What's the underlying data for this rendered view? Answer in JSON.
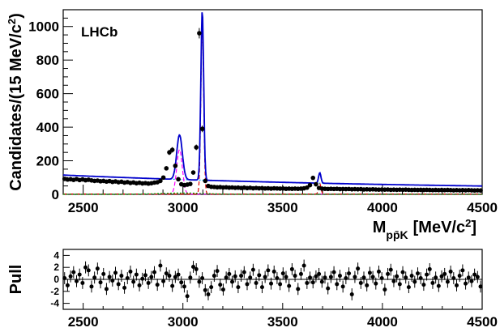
{
  "chart_data": [
    {
      "type": "scatter",
      "name_text": "LHCb",
      "ylabel_main": "Candidates/(15 MeV/c",
      "ylabel_sup": "2",
      "ylabel_close": ")",
      "xlabel_main": "M",
      "xlabel_sub": "pp̄K",
      "xlabel_unit": "[MeV/c",
      "xlabel_sup": "2",
      "xlabel_close": "]",
      "xlim": [
        2400,
        4500
      ],
      "ylim": [
        0,
        1100
      ],
      "xticks": [
        "2500",
        "3000",
        "3500",
        "4000",
        "4500"
      ],
      "yticks": [
        "0",
        "200",
        "400",
        "600",
        "800",
        "1000"
      ],
      "data_points": {
        "x": [
          2407,
          2422,
          2437,
          2452,
          2467,
          2482,
          2497,
          2512,
          2527,
          2542,
          2557,
          2572,
          2587,
          2602,
          2617,
          2632,
          2647,
          2662,
          2677,
          2692,
          2707,
          2722,
          2737,
          2752,
          2767,
          2782,
          2797,
          2812,
          2827,
          2842,
          2857,
          2872,
          2887,
          2902,
          2917,
          2932,
          2947,
          2962,
          2977,
          2992,
          3007,
          3022,
          3037,
          3052,
          3067,
          3082,
          3097,
          3112,
          3127,
          3142,
          3157,
          3172,
          3187,
          3202,
          3217,
          3232,
          3247,
          3262,
          3277,
          3292,
          3307,
          3322,
          3337,
          3352,
          3367,
          3382,
          3397,
          3412,
          3427,
          3442,
          3457,
          3472,
          3487,
          3502,
          3517,
          3532,
          3547,
          3562,
          3577,
          3592,
          3607,
          3622,
          3637,
          3652,
          3667,
          3682,
          3697,
          3712,
          3727,
          3742,
          3757,
          3772,
          3787,
          3802,
          3817,
          3832,
          3847,
          3862,
          3877,
          3892,
          3907,
          3922,
          3937,
          3952,
          3967,
          3982,
          3997,
          4012,
          4027,
          4042,
          4057,
          4072,
          4087,
          4102,
          4117,
          4132,
          4147,
          4162,
          4177,
          4192,
          4207,
          4222,
          4237,
          4252,
          4267,
          4282,
          4297,
          4312,
          4327,
          4342,
          4357,
          4372,
          4387,
          4402,
          4417,
          4432,
          4447,
          4462,
          4477,
          4492
        ],
        "y": [
          92,
          88,
          90,
          86,
          91,
          85,
          89,
          84,
          87,
          83,
          80,
          82,
          78,
          80,
          76,
          79,
          74,
          77,
          72,
          75,
          70,
          73,
          68,
          71,
          66,
          69,
          65,
          67,
          64,
          66,
          70,
          72,
          80,
          100,
          155,
          250,
          265,
          170,
          90,
          60,
          55,
          58,
          62,
          130,
          280,
          960,
          390,
          80,
          50,
          45,
          44,
          42,
          43,
          41,
          42,
          40,
          41,
          39,
          40,
          38,
          40,
          37,
          39,
          36,
          38,
          36,
          37,
          35,
          36,
          34,
          36,
          35,
          34,
          35,
          33,
          34,
          33,
          34,
          33,
          34,
          36,
          40,
          55,
          98,
          60,
          38,
          34,
          33,
          32,
          33,
          32,
          33,
          31,
          32,
          31,
          32,
          30,
          31,
          30,
          31,
          29,
          30,
          29,
          30,
          29,
          28,
          29,
          28,
          29,
          27,
          28,
          27,
          28,
          27,
          28,
          27,
          26,
          27,
          26,
          27,
          26,
          27,
          26,
          25,
          26,
          25,
          26,
          25,
          26,
          25,
          24,
          25,
          24,
          25,
          24,
          25,
          24,
          23,
          24,
          23
        ]
      },
      "fit_series": [
        {
          "color": "#0000cc",
          "style": "solid"
        },
        {
          "color": "#dd0000",
          "style": "dashed"
        },
        {
          "color": "#00aaff",
          "style": "dotted"
        },
        {
          "color": "#ff00ff",
          "style": "dashed"
        },
        {
          "color": "#00aa00",
          "style": "dotted"
        }
      ]
    },
    {
      "type": "scatter",
      "ylabel": "Pull",
      "xlim": [
        2400,
        4500
      ],
      "ylim": [
        -5,
        5
      ],
      "xticks": [
        "2500",
        "3000",
        "3500",
        "4000",
        "4500"
      ],
      "yticks": [
        "-4",
        "-2",
        "0",
        "2",
        "4"
      ],
      "pulls": [
        0.2,
        -1.0,
        0.5,
        1.2,
        -0.3,
        0.8,
        -0.6,
        2.0,
        1.5,
        -1.2,
        0.3,
        1.8,
        -0.5,
        0.9,
        -1.6,
        0.4,
        -0.2,
        1.1,
        -0.8,
        0.6,
        -1.4,
        0.2,
        1.3,
        -0.4,
        0.8,
        -1.0,
        0.1,
        0.7,
        -0.6,
        0.4,
        1.2,
        -0.9,
        2.3,
        -0.3,
        1.0,
        0.6,
        -1.1,
        0.4,
        0.8,
        -0.5,
        -1.2,
        -2.8,
        0.3,
        2.1,
        1.7,
        -0.4,
        0.2,
        -1.8,
        -2.5,
        -1.3,
        0.6,
        1.4,
        -0.9,
        -1.7,
        0.3,
        0.9,
        -0.4,
        0.5,
        -1.3,
        0.6,
        1.2,
        -0.8,
        0.3,
        1.6,
        -0.6,
        0.7,
        -1.3,
        0.4,
        1.5,
        -0.7,
        1.3,
        0.2,
        -0.8,
        1.0,
        0.4,
        -1.1,
        1.7,
        0.6,
        -1.6,
        0.9,
        2.3,
        -0.6,
        0.3,
        -0.5,
        0.5,
        0.9,
        -0.4,
        0.3,
        -1.5,
        0.4,
        1.2,
        -0.8,
        0.6,
        -1.2,
        0.2,
        1.0,
        -2.5,
        0.4,
        1.8,
        -0.6,
        0.3,
        -1.0,
        1.1,
        0.4,
        -0.7,
        1.3,
        0.2,
        -1.7,
        0.9,
        1.6,
        -0.3,
        0.5,
        -0.8,
        1.2,
        0.3,
        -1.3,
        0.6,
        -0.4,
        1.0,
        0.2,
        -0.9,
        0.8,
        1.7,
        -0.6,
        0.3,
        -1.1,
        0.5,
        0.9,
        -0.4,
        1.3,
        0.2,
        -1.0,
        0.6,
        1.5,
        -0.7,
        0.3,
        -0.3,
        0.8,
        0.4,
        -1.2
      ]
    }
  ]
}
